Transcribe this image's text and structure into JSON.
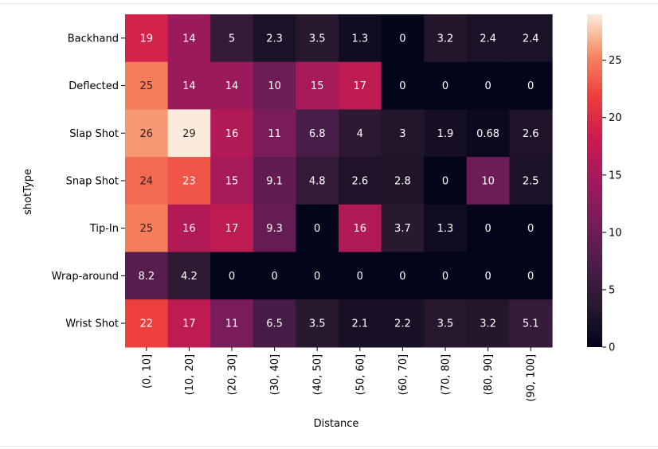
{
  "chart_data": {
    "type": "heatmap",
    "xlabel": "Distance",
    "ylabel": "shotType",
    "x_categories": [
      "(0, 10]",
      "(10, 20]",
      "(20, 30]",
      "(30, 40]",
      "(40, 50]",
      "(50, 60]",
      "(60, 70]",
      "(70, 80]",
      "(80, 90]",
      "(90, 100]"
    ],
    "y_categories": [
      "Backhand",
      "Deflected",
      "Slap Shot",
      "Snap Shot",
      "Tip-In",
      "Wrap-around",
      "Wrist Shot"
    ],
    "values": [
      [
        19,
        14,
        5,
        2.3,
        3.5,
        1.3,
        0,
        3.2,
        2.4,
        2.4
      ],
      [
        25,
        14,
        14,
        10,
        15,
        17,
        0,
        0,
        0,
        0
      ],
      [
        26,
        29,
        16,
        11,
        6.8,
        4,
        3,
        1.9,
        0.68,
        2.6
      ],
      [
        24,
        23,
        15,
        9.1,
        4.8,
        2.6,
        2.8,
        0,
        10,
        2.5
      ],
      [
        25,
        16,
        17,
        9.3,
        0,
        16,
        3.7,
        1.3,
        0,
        0
      ],
      [
        8.2,
        4.2,
        0,
        0,
        0,
        0,
        0,
        0,
        0,
        0
      ],
      [
        22,
        17,
        11,
        6.5,
        3.5,
        2.1,
        2.2,
        3.5,
        3.2,
        5.1
      ]
    ],
    "value_labels": [
      [
        "19",
        "14",
        "5",
        "2.3",
        "3.5",
        "1.3",
        "0",
        "3.2",
        "2.4",
        "2.4"
      ],
      [
        "25",
        "14",
        "14",
        "10",
        "15",
        "17",
        "0",
        "0",
        "0",
        "0"
      ],
      [
        "26",
        "29",
        "16",
        "11",
        "6.8",
        "4",
        "3",
        "1.9",
        "0.68",
        "2.6"
      ],
      [
        "24",
        "23",
        "15",
        "9.1",
        "4.8",
        "2.6",
        "2.8",
        "0",
        "10",
        "2.5"
      ],
      [
        "25",
        "16",
        "17",
        "9.3",
        "0",
        "16",
        "3.7",
        "1.3",
        "0",
        "0"
      ],
      [
        "8.2",
        "4.2",
        "0",
        "0",
        "0",
        "0",
        "0",
        "0",
        "0",
        "0"
      ],
      [
        "22",
        "17",
        "11",
        "6.5",
        "3.5",
        "2.1",
        "2.2",
        "3.5",
        "3.2",
        "5.1"
      ]
    ],
    "colorbar": {
      "min": 0,
      "max": 29,
      "ticks": [
        0,
        5,
        10,
        15,
        20,
        25
      ],
      "colormap": "rocket"
    }
  }
}
